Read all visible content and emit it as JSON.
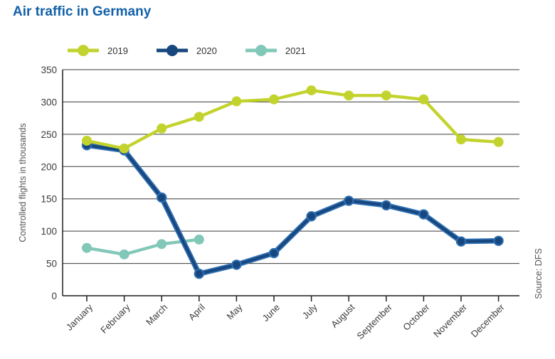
{
  "title": "Air traffic in Germany",
  "source_label": "Source: DFS",
  "colors": {
    "title": "#1260a8",
    "axis_text": "#3c3c3c",
    "label_text": "#555555",
    "grid": "#3a3a3a",
    "axis_line": "#1f1f1f",
    "series_2019": "#c3d32e",
    "series_2020": "#17477e",
    "series_2020_edge": "#2f6fb2",
    "series_2021": "#82c8b8"
  },
  "chart_data": {
    "type": "line",
    "title": "Air traffic in Germany",
    "xlabel": "",
    "ylabel": "Controlled flights in thousands",
    "ylim": [
      0,
      350
    ],
    "yticks": [
      0,
      50,
      100,
      150,
      200,
      250,
      300,
      350
    ],
    "grid": true,
    "legend_position": "top-left",
    "categories": [
      "January",
      "February",
      "March",
      "April",
      "May",
      "June",
      "July",
      "August",
      "September",
      "October",
      "November",
      "December"
    ],
    "series": [
      {
        "name": "2019",
        "color": "#c3d32e",
        "values": [
          240,
          228,
          259,
          277,
          301,
          304,
          318,
          310,
          310,
          304,
          242,
          238
        ]
      },
      {
        "name": "2020",
        "color": "#17477e",
        "edge_color": "#2f6fb2",
        "values": [
          233,
          225,
          152,
          34,
          48,
          66,
          123,
          147,
          140,
          126,
          84,
          85
        ]
      },
      {
        "name": "2021",
        "color": "#82c8b8",
        "values": [
          74,
          64,
          80,
          87
        ]
      }
    ]
  }
}
